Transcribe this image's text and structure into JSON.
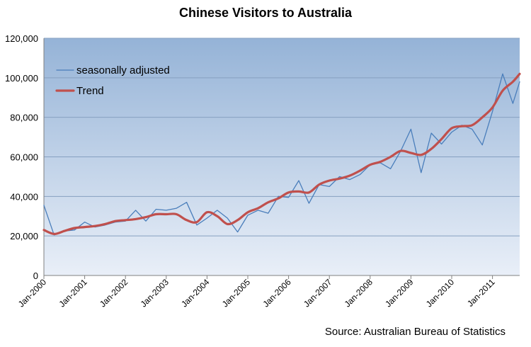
{
  "chart_data": {
    "type": "line",
    "title": "Chinese Visitors to Australia",
    "source": "Source: Australian Bureau of Statistics",
    "xlabel": "",
    "ylabel": "",
    "ylim": [
      0,
      120000
    ],
    "y_ticks": [
      "0",
      "20,000",
      "40,000",
      "60,000",
      "80,000",
      "100,000",
      "120,000"
    ],
    "y_tick_values": [
      0,
      20000,
      40000,
      60000,
      80000,
      100000,
      120000
    ],
    "x_ticks": [
      "Jan-2000",
      "Jan-2001",
      "Jan-2002",
      "Jan-2003",
      "Jan-2004",
      "Jan-2005",
      "Jan-2006",
      "Jan-2007",
      "Jan-2008",
      "Jan-2009",
      "Jan-2010",
      "Jan-2011"
    ],
    "xlim": [
      "Jan-2000",
      "Sep-2011"
    ],
    "grid": true,
    "legend_position": "top-left",
    "series": [
      {
        "name": "seasonally adjusted",
        "color": "#4a7ebb",
        "x": [
          "Jan-2000",
          "Apr-2000",
          "Jul-2000",
          "Oct-2000",
          "Jan-2001",
          "Apr-2001",
          "Jul-2001",
          "Oct-2001",
          "Jan-2002",
          "Apr-2002",
          "Jul-2002",
          "Oct-2002",
          "Jan-2003",
          "Apr-2003",
          "Jul-2003",
          "Oct-2003",
          "Jan-2004",
          "Apr-2004",
          "Jul-2004",
          "Oct-2004",
          "Jan-2005",
          "Apr-2005",
          "Jul-2005",
          "Oct-2005",
          "Jan-2006",
          "Apr-2006",
          "Jul-2006",
          "Oct-2006",
          "Jan-2007",
          "Apr-2007",
          "Jul-2007",
          "Oct-2007",
          "Jan-2008",
          "Apr-2008",
          "Jul-2008",
          "Oct-2008",
          "Jan-2009",
          "Apr-2009",
          "Jul-2009",
          "Oct-2009",
          "Jan-2010",
          "Apr-2010",
          "Jul-2010",
          "Oct-2010",
          "Jan-2011",
          "Apr-2011",
          "Jul-2011",
          "Sep-2011"
        ],
        "values": [
          35500,
          20500,
          22500,
          23000,
          27000,
          24500,
          25500,
          27000,
          27500,
          33000,
          27500,
          33500,
          33000,
          34000,
          37000,
          25500,
          29000,
          33000,
          29000,
          22000,
          30500,
          33000,
          31500,
          40000,
          39500,
          48000,
          36500,
          46000,
          45000,
          50000,
          48500,
          51000,
          56000,
          57000,
          54000,
          63000,
          74000,
          52000,
          72000,
          66500,
          72500,
          76000,
          74000,
          66000,
          83000,
          102000,
          87000,
          98000
        ]
      },
      {
        "name": "Trend",
        "color": "#c0504d",
        "x": [
          "Jan-2000",
          "Apr-2000",
          "Jul-2000",
          "Oct-2000",
          "Jan-2001",
          "Apr-2001",
          "Jul-2001",
          "Oct-2001",
          "Jan-2002",
          "Apr-2002",
          "Jul-2002",
          "Oct-2002",
          "Jan-2003",
          "Apr-2003",
          "Jul-2003",
          "Oct-2003",
          "Jan-2004",
          "Apr-2004",
          "Jul-2004",
          "Oct-2004",
          "Jan-2005",
          "Apr-2005",
          "Jul-2005",
          "Oct-2005",
          "Jan-2006",
          "Apr-2006",
          "Jul-2006",
          "Oct-2006",
          "Jan-2007",
          "Apr-2007",
          "Jul-2007",
          "Oct-2007",
          "Jan-2008",
          "Apr-2008",
          "Jul-2008",
          "Oct-2008",
          "Jan-2009",
          "Apr-2009",
          "Jul-2009",
          "Oct-2009",
          "Jan-2010",
          "Apr-2010",
          "Jul-2010",
          "Oct-2010",
          "Jan-2011",
          "Apr-2011",
          "Jul-2011",
          "Sep-2011"
        ],
        "values": [
          23000,
          21000,
          22500,
          24000,
          24500,
          25000,
          26000,
          27500,
          28000,
          28500,
          29500,
          31000,
          31000,
          31000,
          28000,
          27000,
          32000,
          30000,
          26000,
          28000,
          32000,
          34000,
          37000,
          39000,
          42000,
          42500,
          42000,
          46000,
          48000,
          49000,
          50500,
          53000,
          56000,
          57500,
          60000,
          63000,
          62000,
          61000,
          64000,
          69000,
          74500,
          75500,
          76000,
          80000,
          85000,
          93500,
          98000,
          102000
        ]
      }
    ]
  }
}
